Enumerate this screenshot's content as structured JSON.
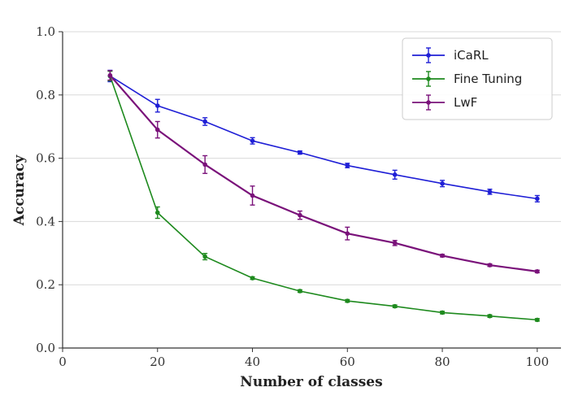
{
  "chart_data": {
    "type": "line",
    "xlabel": "Number of classes",
    "ylabel": "Accuracy",
    "xlim": [
      0,
      105
    ],
    "ylim": [
      0.0,
      1.0
    ],
    "xticks": [
      0,
      20,
      40,
      60,
      80,
      100
    ],
    "xtick_labels": [
      "0",
      "20",
      "40",
      "60",
      "80",
      "100"
    ],
    "yticks": [
      0.0,
      0.2,
      0.4,
      0.6,
      0.8,
      1.0
    ],
    "ytick_labels": [
      "0.0",
      "0.2",
      "0.4",
      "0.6",
      "0.8",
      "1.0"
    ],
    "grid": "horizontal",
    "legend_position": "top-right",
    "x": [
      10,
      20,
      30,
      40,
      50,
      60,
      70,
      80,
      90,
      100
    ],
    "series": [
      {
        "name": "iCaRL",
        "color": "#1f1fd6",
        "values": [
          0.86,
          0.766,
          0.716,
          0.655,
          0.618,
          0.577,
          0.548,
          0.52,
          0.494,
          0.472
        ],
        "errors": [
          0.018,
          0.02,
          0.012,
          0.01,
          0.005,
          0.007,
          0.014,
          0.01,
          0.008,
          0.01
        ]
      },
      {
        "name": "Fine Tuning",
        "color": "#1e8a1e",
        "values": [
          0.86,
          0.428,
          0.289,
          0.221,
          0.18,
          0.149,
          0.132,
          0.112,
          0.101,
          0.089
        ],
        "errors": [
          0.015,
          0.018,
          0.01,
          0.004,
          0.004,
          0.004,
          0.004,
          0.004,
          0.004,
          0.004
        ]
      },
      {
        "name": "LwF",
        "color": "#7a127a",
        "values": [
          0.862,
          0.69,
          0.58,
          0.482,
          0.42,
          0.362,
          0.332,
          0.292,
          0.262,
          0.242
        ],
        "errors": [
          0.015,
          0.026,
          0.028,
          0.03,
          0.013,
          0.02,
          0.008,
          0.004,
          0.004,
          0.004
        ]
      }
    ]
  }
}
